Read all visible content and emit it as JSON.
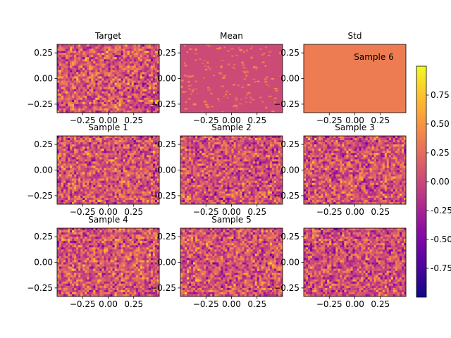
{
  "chart_data": {
    "type": "heatmap",
    "colormap": "plasma",
    "colorbar": {
      "range": [
        -1.0,
        1.0
      ],
      "tick_labels": [
        "0.75",
        "0.50",
        "0.25",
        "0.00",
        "-0.25",
        "-0.50",
        "-0.75"
      ],
      "tick_values": [
        0.75,
        0.5,
        0.25,
        0.0,
        -0.25,
        -0.5,
        -0.75
      ]
    },
    "panels": [
      {
        "title": "Target",
        "extent": [
          -0.5,
          0.5,
          -0.333,
          0.333
        ],
        "style": "noise",
        "seed": 11,
        "mean": 0.1,
        "spread": 0.45
      },
      {
        "title": "Mean",
        "extent": [
          -0.5,
          0.5,
          -0.333,
          0.333
        ],
        "style": "mean",
        "seed": 23,
        "mean": 0.02,
        "spread": 0.05
      },
      {
        "title": "Std",
        "extent": [
          -0.5,
          0.5,
          -0.333,
          0.333
        ],
        "style": "uniform",
        "value": 0.35,
        "overlay_text": "Sample 6"
      },
      {
        "title": "Sample 1",
        "extent": [
          -0.5,
          0.5,
          -0.333,
          0.333
        ],
        "style": "noise",
        "seed": 31,
        "mean": 0.1,
        "spread": 0.45
      },
      {
        "title": "Sample 2",
        "extent": [
          -0.5,
          0.5,
          -0.333,
          0.333
        ],
        "style": "noise",
        "seed": 47,
        "mean": 0.08,
        "spread": 0.45
      },
      {
        "title": "Sample 3",
        "extent": [
          -0.5,
          0.5,
          -0.333,
          0.333
        ],
        "style": "noise",
        "seed": 59,
        "mean": 0.1,
        "spread": 0.45
      },
      {
        "title": "Sample 4",
        "extent": [
          -0.5,
          0.5,
          -0.333,
          0.333
        ],
        "style": "noise",
        "seed": 67,
        "mean": 0.12,
        "spread": 0.45
      },
      {
        "title": "Sample 5",
        "extent": [
          -0.5,
          0.5,
          -0.333,
          0.333
        ],
        "style": "noise",
        "seed": 79,
        "mean": 0.1,
        "spread": 0.45
      },
      {
        "title": "",
        "extent": [
          -0.5,
          0.5,
          -0.333,
          0.333
        ],
        "style": "noise",
        "seed": 83,
        "mean": 0.06,
        "spread": 0.45
      }
    ],
    "x_ticks": [
      -0.25,
      0.0,
      0.25
    ],
    "x_tick_labels": [
      "−0.25",
      "0.00",
      "0.25"
    ],
    "y_ticks": [
      0.25,
      0.0,
      -0.25
    ],
    "y_tick_labels": [
      "0.25",
      "0.00",
      "−0.25"
    ]
  }
}
